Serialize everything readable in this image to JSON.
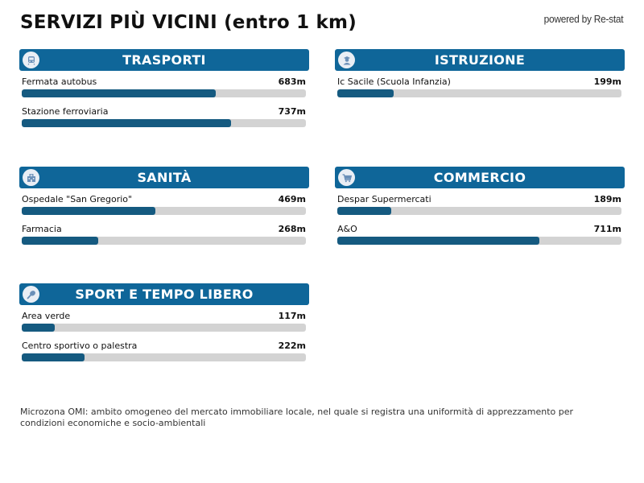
{
  "header": {
    "title": "SERVIZI PIÙ VICINI (entro 1 km)",
    "brand": "powered by Re-stat"
  },
  "colors": {
    "header_bg": "#0f6699",
    "bar_fill": "#155a80",
    "bar_track": "#d3d3d3"
  },
  "scale_max_m": 1000,
  "sections": [
    {
      "title": "TRASPORTI",
      "icon": "train-icon",
      "items": [
        {
          "name": "Fermata autobus",
          "distance": "683m",
          "value": 683
        },
        {
          "name": "Stazione ferroviaria",
          "distance": "737m",
          "value": 737
        }
      ]
    },
    {
      "title": "ISTRUZIONE",
      "icon": "student-icon",
      "items": [
        {
          "name": "Ic Sacile (Scuola Infanzia)",
          "distance": "199m",
          "value": 199
        }
      ]
    },
    {
      "title": "SANITÀ",
      "icon": "hospital-icon",
      "items": [
        {
          "name": "Ospedale \"San Gregorio\"",
          "distance": "469m",
          "value": 469
        },
        {
          "name": "Farmacia",
          "distance": "268m",
          "value": 268
        }
      ]
    },
    {
      "title": "COMMERCIO",
      "icon": "shopping-cart-icon",
      "items": [
        {
          "name": "Despar Supermercati",
          "distance": "189m",
          "value": 189
        },
        {
          "name": "A&O",
          "distance": "711m",
          "value": 711
        }
      ]
    },
    {
      "title": "SPORT E TEMPO LIBERO",
      "icon": "racket-icon",
      "items": [
        {
          "name": "Area verde",
          "distance": "117m",
          "value": 117
        },
        {
          "name": "Centro sportivo o palestra",
          "distance": "222m",
          "value": 222
        }
      ]
    }
  ],
  "footer": {
    "note": "Microzona OMI: ambito omogeneo del mercato immobiliare locale, nel quale si registra una uniformità di apprezzamento per condizioni economiche e socio-ambientali"
  }
}
